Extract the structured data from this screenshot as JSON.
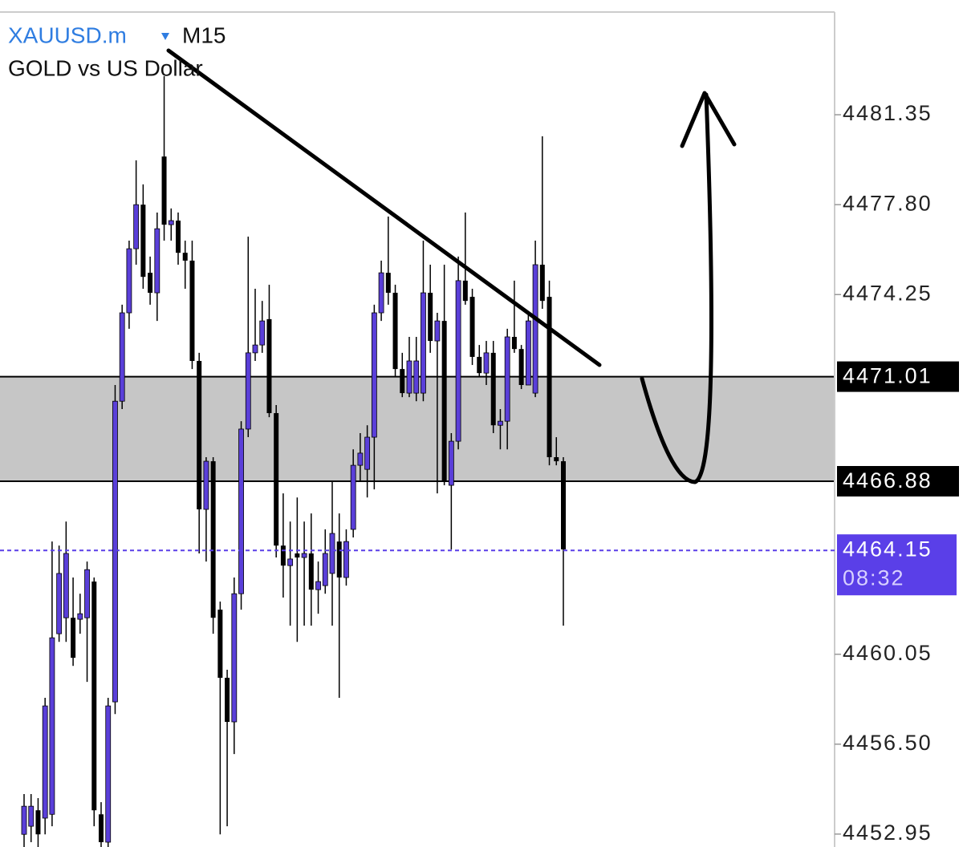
{
  "chart_data": {
    "type": "candlestick",
    "title": "XAUUSD.m",
    "timeframe": "M15",
    "subtitle": "GOLD vs US Dollar",
    "up_color": "#5a3fd9",
    "down_color": "#000000",
    "title_color": "#2f7de1",
    "ylim": [
      4452.44,
      4485.88
    ],
    "yticks": [
      4481.35,
      {
        "value": 4477.8,
        "label": "4477.80"
      },
      4474.25,
      4460.05,
      {
        "value": 4456.5,
        "label": "4456.50"
      },
      4452.95
    ],
    "levels": [
      4471.01,
      4466.88
    ],
    "zone_between_levels": true,
    "current_price": 4464.15,
    "current_price_color": "#5a3fe8",
    "countdown": "08:32",
    "open": [
      4452.94,
      4453.26,
      4453.89,
      4453.58,
      4453.73,
      4460.86,
      4461.49,
      4461.49,
      4461.43,
      4461.49,
      4462.92,
      4453.73,
      4452.63,
      4458.17,
      4470.04,
      4473.53,
      4476.06,
      4477.8,
      4475.11,
      4474.32,
      4479.7,
      4477.01,
      4477.17,
      4475.9,
      4475.59,
      4471.63,
      4465.77,
      4467.67,
      4461.81,
      4459.12,
      4457.38,
      4462.44,
      4468.94,
      4471.95,
      4472.26,
      4473.28,
      4469.57,
      4464.34,
      4463.55,
      4464.03,
      4463.87,
      4464.03,
      4462.6,
      4462.76,
      4463.24,
      4464.5,
      4463.08,
      4464.98,
      4467.51,
      4467.35,
      4468.62,
      4473.53,
      4475.11,
      4474.32,
      4471.31,
      4470.36,
      4470.36,
      4470.36,
      4474.32,
      4472.42,
      4473.21,
      4466.72,
      4468.46,
      4474.8,
      4474.16,
      4471.79,
      4471.15,
      4471.95,
      4469.09,
      4469.25,
      4472.58,
      4472.1,
      4470.68,
      4470.36,
      4475.43,
      4474.16,
      4467.83,
      4467.67
    ],
    "high": [
      4454.53,
      4454.53,
      4454.37,
      4458.33,
      4464.5,
      4464.34,
      4465.29,
      4463.08,
      4462.44,
      4463.71,
      4463.08,
      4454.21,
      4458.33,
      4470.68,
      4473.85,
      4476.38,
      4479.55,
      4478.6,
      4475.75,
      4477.49,
      4482.87,
      4477.65,
      4477.49,
      4476.38,
      4476.38,
      4471.95,
      4467.83,
      4467.83,
      4462.13,
      4459.44,
      4463.08,
      4469.25,
      4476.54,
      4474.48,
      4474.0,
      4474.64,
      4469.89,
      4466.4,
      4465.29,
      4466.24,
      4465.29,
      4465.61,
      4463.71,
      4464.98,
      4466.88,
      4465.61,
      4464.98,
      4468.14,
      4468.78,
      4469.09,
      4473.85,
      4475.59,
      4477.33,
      4474.64,
      4471.95,
      4472.58,
      4472.58,
      4476.38,
      4475.43,
      4473.53,
      4475.43,
      4468.78,
      4475.75,
      4477.49,
      4474.48,
      4472.26,
      4472.42,
      4472.42,
      4469.73,
      4472.9,
      4474.8,
      4472.26,
      4473.53,
      4476.38,
      4480.5,
      4474.8,
      4468.62,
      4467.83
    ],
    "low": [
      4452.44,
      4452.63,
      4452.44,
      4452.94,
      4453.26,
      4460.54,
      4460.54,
      4459.59,
      4460.86,
      4458.96,
      4453.26,
      4452.44,
      4452.44,
      4457.69,
      4469.73,
      4472.9,
      4475.43,
      4474.48,
      4473.85,
      4473.21,
      4476.38,
      4476.38,
      4475.43,
      4474.48,
      4471.31,
      4464.03,
      4463.71,
      4460.86,
      4452.94,
      4453.26,
      4456.11,
      4461.81,
      4468.62,
      4471.63,
      4471.95,
      4469.41,
      4463.87,
      4462.29,
      4461.18,
      4460.54,
      4461.18,
      4461.18,
      4461.65,
      4462.44,
      4461.18,
      4458.33,
      4462.76,
      4464.66,
      4466.88,
      4466.24,
      4466.56,
      4473.21,
      4473.85,
      4471.0,
      4470.2,
      4470.2,
      4470.04,
      4470.04,
      4471.95,
      4466.4,
      4466.72,
      4464.19,
      4468.14,
      4473.85,
      4471.47,
      4471.0,
      4470.68,
      4468.78,
      4468.14,
      4468.14,
      4471.95,
      4470.52,
      4470.68,
      4470.2,
      4473.69,
      4467.51,
      4467.51,
      4461.18
    ],
    "close": [
      4454.05,
      4454.05,
      4452.94,
      4458.01,
      4460.7,
      4463.24,
      4464.03,
      4459.91,
      4461.65,
      4463.39,
      4453.89,
      4452.63,
      4458.01,
      4470.04,
      4473.53,
      4476.06,
      4477.8,
      4474.95,
      4474.32,
      4476.85,
      4477.01,
      4477.17,
      4475.9,
      4475.59,
      4471.63,
      4465.77,
      4467.67,
      4461.49,
      4459.12,
      4457.38,
      4462.44,
      4468.94,
      4471.95,
      4472.26,
      4473.21,
      4469.57,
      4464.34,
      4463.55,
      4463.81,
      4463.87,
      4464.03,
      4462.6,
      4462.92,
      4464.03,
      4464.82,
      4463.08,
      4464.5,
      4467.51,
      4467.99,
      4468.62,
      4473.53,
      4475.11,
      4474.32,
      4471.31,
      4470.36,
      4471.63,
      4471.63,
      4474.32,
      4472.42,
      4473.21,
      4466.88,
      4468.46,
      4474.8,
      4474.0,
      4471.79,
      4471.15,
      4471.95,
      4469.09,
      4469.25,
      4472.58,
      4472.1,
      4470.68,
      4473.21,
      4475.43,
      4474.0,
      4467.83,
      4467.67,
      4464.19
    ]
  }
}
